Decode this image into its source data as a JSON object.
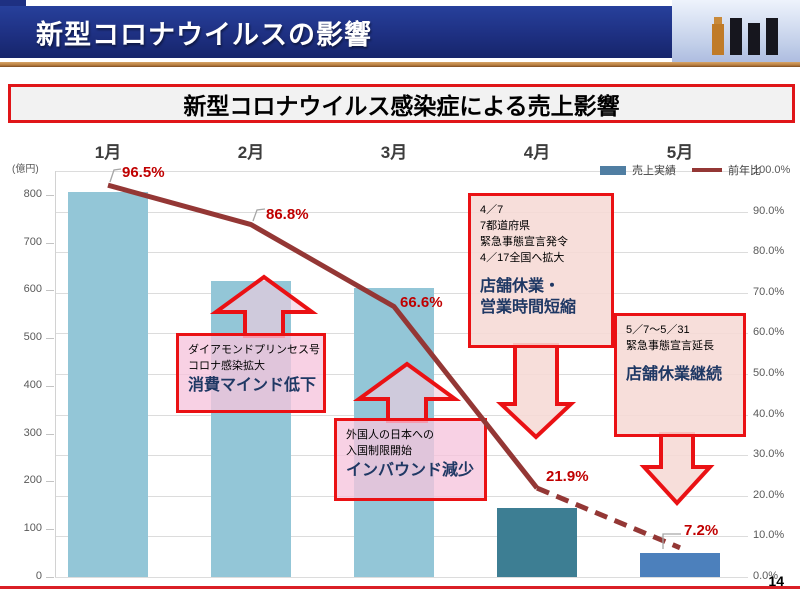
{
  "header": {
    "title": "新型コロナウイルスの影響"
  },
  "subtitle": "新型コロナウイルス感染症による売上影響",
  "page_number": "14",
  "chart_data": {
    "type": "combo-bar-line",
    "categories": [
      "1月",
      "2月",
      "3月",
      "4月",
      "5月"
    ],
    "series": [
      {
        "name": "売上実績",
        "type": "bar",
        "axis": "left",
        "values": [
          805,
          620,
          605,
          145,
          50
        ],
        "bar_colors": [
          "#93c6d7",
          "#93c6d7",
          "#93c6d7",
          "#3d7e93",
          "#4c80bc"
        ]
      },
      {
        "name": "前年比",
        "type": "line",
        "axis": "right",
        "values_pct": [
          96.5,
          86.8,
          66.6,
          21.9,
          7.2
        ],
        "point_labels": [
          "96.5%",
          "86.8%",
          "66.6%",
          "21.9%",
          "7.2%"
        ],
        "color": "#943735",
        "dashed_from_index": 3
      }
    ],
    "left_axis": {
      "unit_label": "(億円)",
      "ticks": [
        800,
        700,
        600,
        500,
        400,
        300,
        200,
        100,
        0
      ],
      "min": 0,
      "max": 850
    },
    "right_axis": {
      "ticks": [
        "100.0%",
        "90.0%",
        "80.0%",
        "70.0%",
        "60.0%",
        "50.0%",
        "40.0%",
        "30.0%",
        "20.0%",
        "10.0%",
        "0.0%"
      ],
      "min": 0,
      "max": 100
    },
    "legend": {
      "position": "top-right",
      "entries": [
        {
          "label": "売上実績",
          "swatch": "bar",
          "color": "#507ea2"
        },
        {
          "label": "前年比",
          "swatch": "line",
          "color": "#943735"
        }
      ]
    },
    "grid": true
  },
  "callouts": [
    {
      "id": "feb",
      "tone": "pink",
      "arrow": "up",
      "lines": [
        {
          "text": "ダイアモンドプリンセス号"
        },
        {
          "text": "コロナ感染拡大"
        },
        {
          "text": "消費マインド低下",
          "emphasis": true
        }
      ]
    },
    {
      "id": "mar",
      "tone": "pink",
      "arrow": "up",
      "lines": [
        {
          "text": "外国人の日本への"
        },
        {
          "text": "入国制限開始"
        },
        {
          "text": "インバウンド減少",
          "emphasis": true
        }
      ]
    },
    {
      "id": "apr",
      "tone": "peach",
      "arrow": "down",
      "lines": [
        {
          "text": "4／7"
        },
        {
          "text": "7都道府県"
        },
        {
          "text": "緊急事態宣言発令"
        },
        {
          "text": "4／17全国へ拡大"
        },
        {
          "spacer": true
        },
        {
          "text": "店舗休業・",
          "emphasis": true
        },
        {
          "text": "営業時間短縮",
          "emphasis": true
        }
      ]
    },
    {
      "id": "may",
      "tone": "peach",
      "arrow": "down",
      "lines": [
        {
          "text": "5／7～5／31"
        },
        {
          "text": "緊急事態宣言延長"
        },
        {
          "spacer": true
        },
        {
          "text": "店舗休業継続",
          "emphasis": true
        }
      ]
    }
  ]
}
